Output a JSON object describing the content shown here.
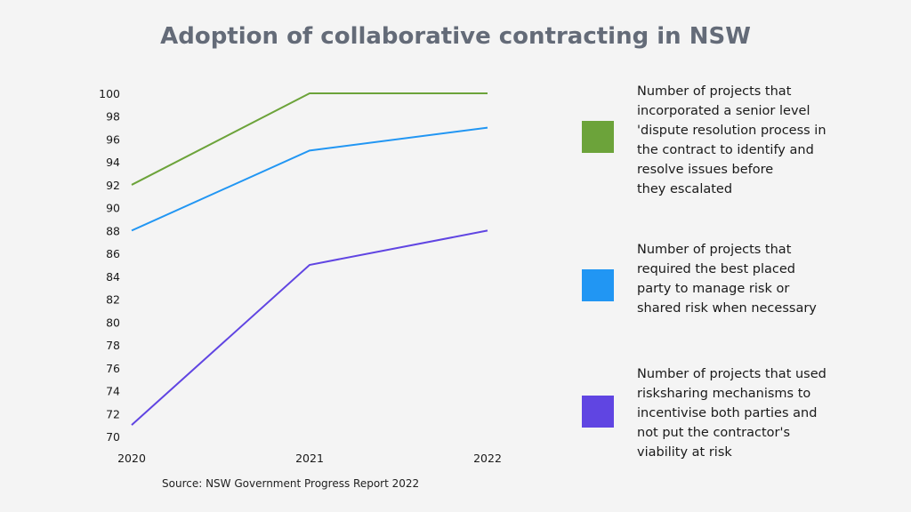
{
  "chart_data": {
    "type": "line",
    "title": "Adoption of collaborative contracting in NSW",
    "source": "Source: NSW Government Progress Report 2022",
    "x": [
      "2020",
      "2021",
      "2022"
    ],
    "ylim": [
      70,
      100
    ],
    "yticks": [
      70,
      72,
      74,
      76,
      78,
      80,
      82,
      84,
      86,
      88,
      90,
      92,
      94,
      96,
      98,
      100
    ],
    "grid": false,
    "legend_position": "right",
    "series": [
      {
        "name": "Number of projects that\nincorporated a senior level\n'dispute resolution process in\nthe contract to identify and\nresolve issues before\nthey escalated",
        "color": "#6ca33a",
        "values": [
          92,
          100,
          100
        ]
      },
      {
        "name": "Number of projects that\nrequired the best placed\nparty to manage risk or\nshared risk when necessary",
        "color": "#2196f3",
        "values": [
          88,
          95,
          97
        ]
      },
      {
        "name": "Number of projects that used\nrisksharing mechanisms to\nincentivise both parties and\nnot put the contractor's\nviability at risk",
        "color": "#6045e2",
        "values": [
          71,
          85,
          88
        ]
      }
    ]
  }
}
